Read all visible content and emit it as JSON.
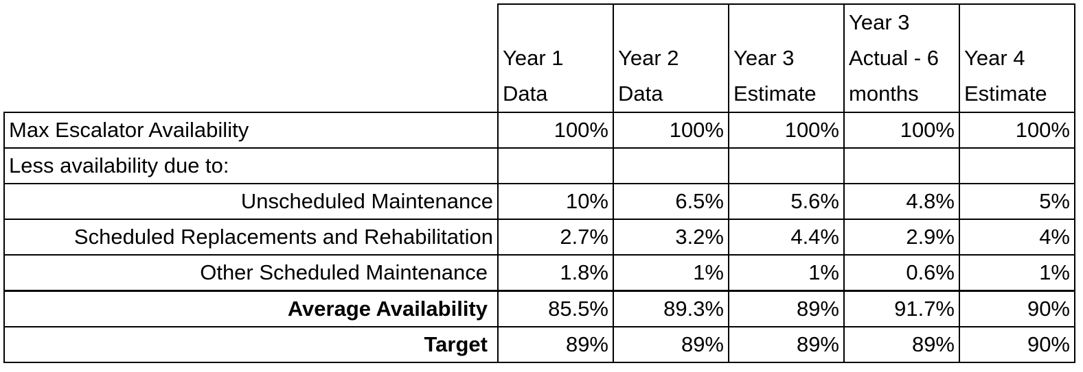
{
  "headers": [
    "Year 1 Data",
    "Year 2 Data",
    "Year 3 Estimate",
    "Year 3 Actual - 6 months",
    "Year 4 Estimate"
  ],
  "rows": [
    {
      "label": "Max Escalator Availability",
      "values": [
        "100%",
        "100%",
        "100%",
        "100%",
        "100%"
      ]
    },
    {
      "label": "Less availability due to:",
      "values": [
        "",
        "",
        "",
        "",
        ""
      ]
    },
    {
      "label": "Unscheduled Maintenance",
      "values": [
        "10%",
        "6.5%",
        "5.6%",
        "4.8%",
        "5%"
      ]
    },
    {
      "label": "Scheduled Replacements and Rehabilitation",
      "values": [
        "2.7%",
        "3.2%",
        "4.4%",
        "2.9%",
        "4%"
      ]
    },
    {
      "label": "Other Scheduled Maintenance",
      "values": [
        "1.8%",
        "1%",
        "1%",
        "0.6%",
        "1%"
      ]
    },
    {
      "label": "Average Availability",
      "values": [
        "85.5%",
        "89.3%",
        "89%",
        "91.7%",
        "90%"
      ]
    },
    {
      "label": "Target",
      "values": [
        "89%",
        "89%",
        "89%",
        "89%",
        "90%"
      ]
    }
  ]
}
